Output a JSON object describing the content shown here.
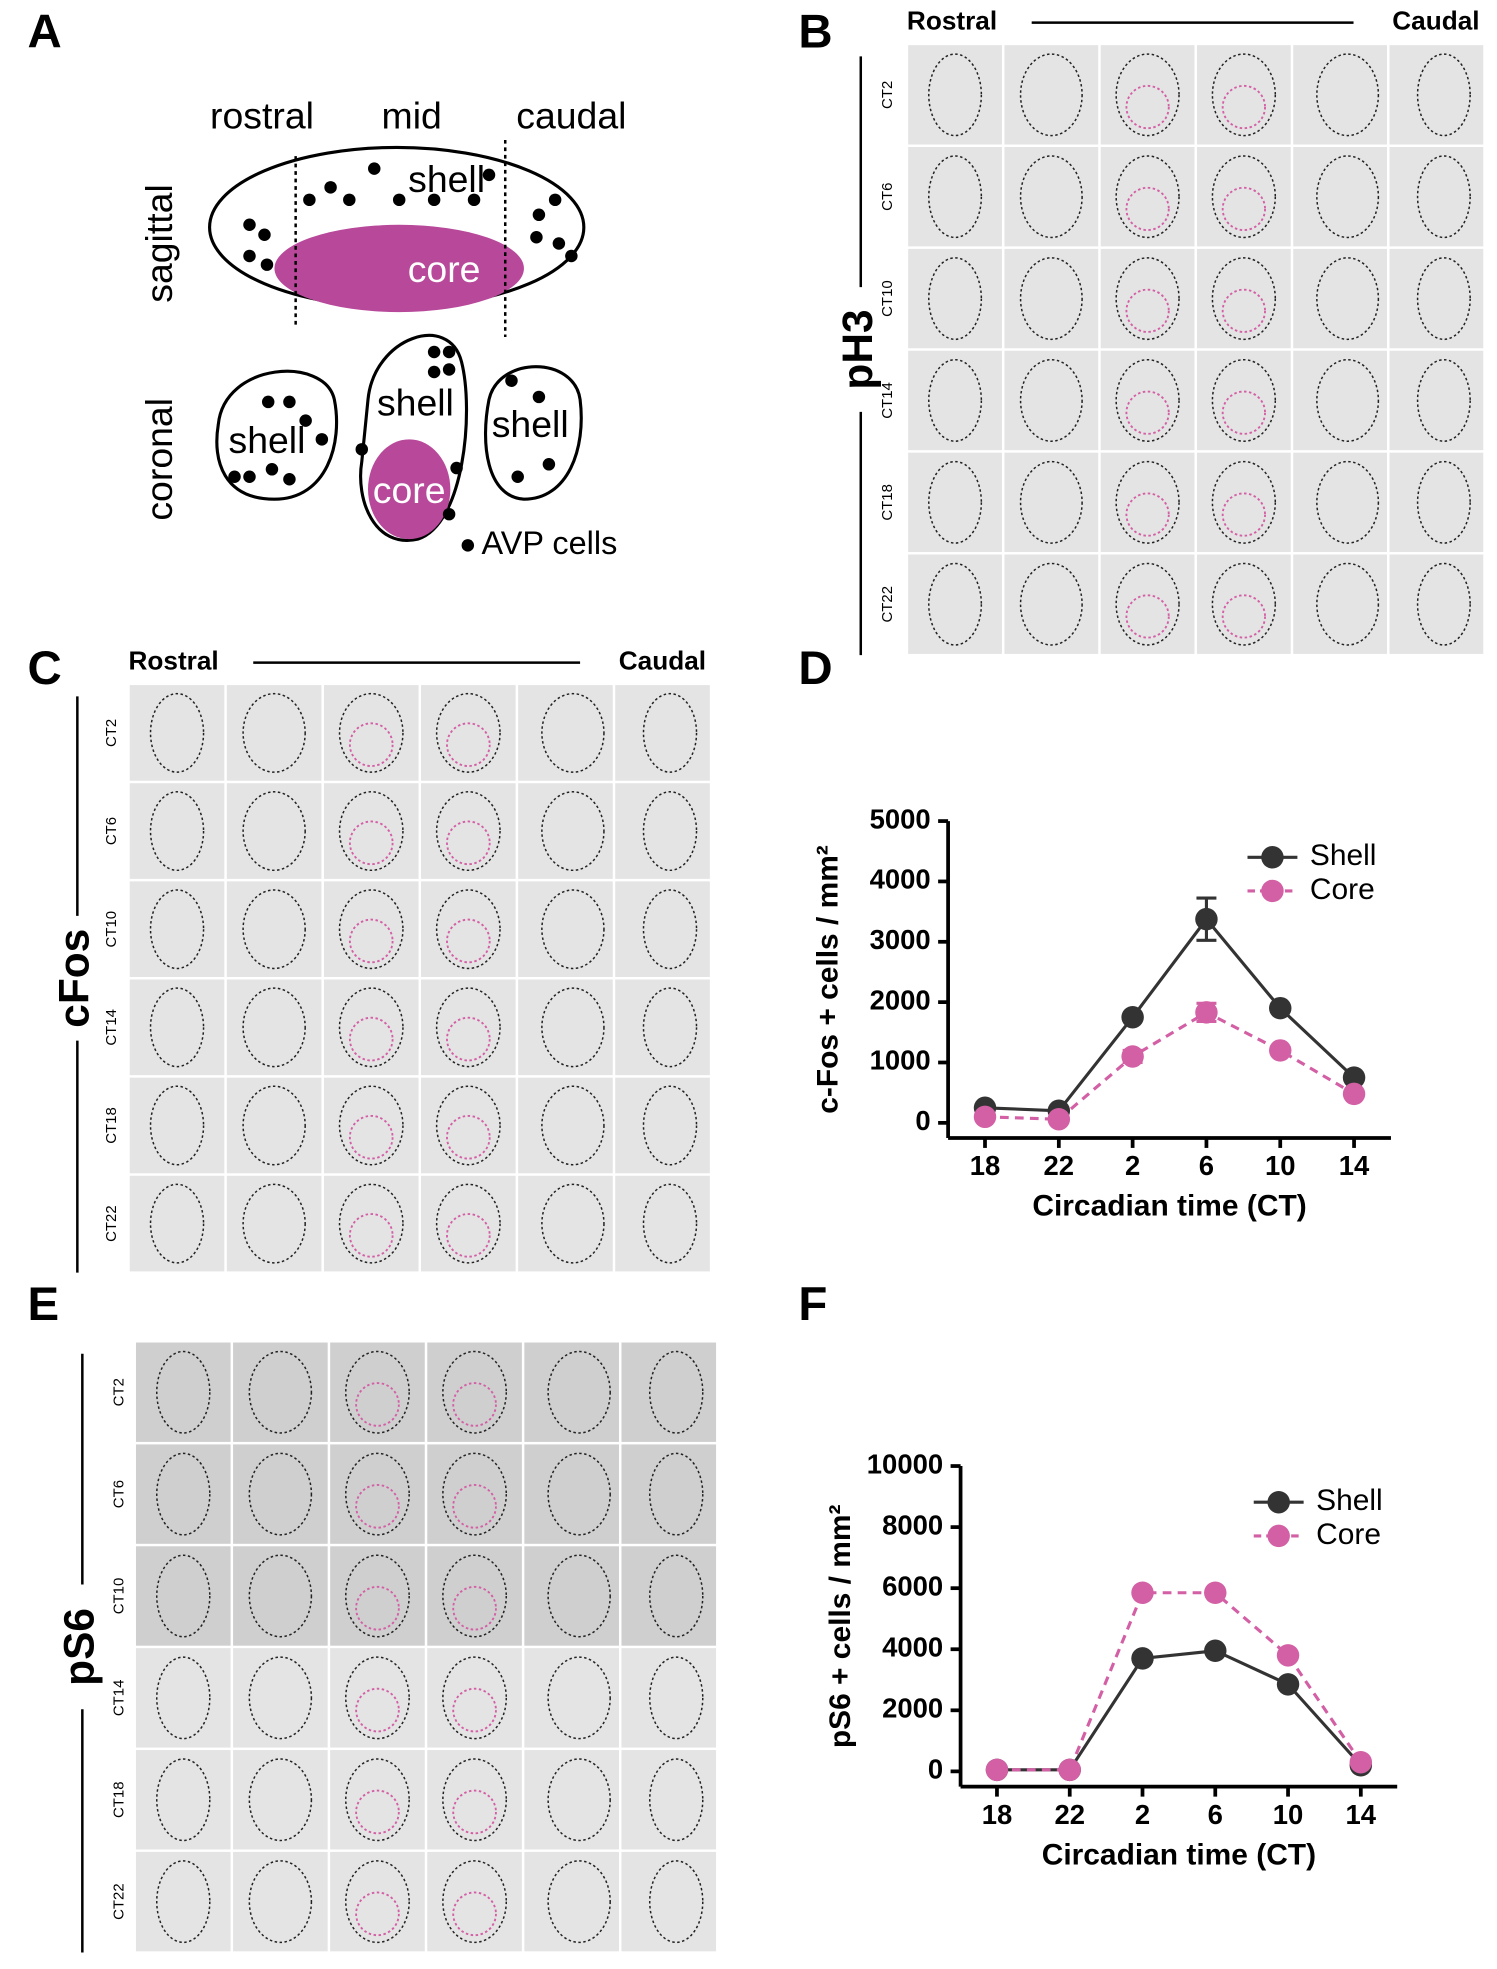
{
  "panel_labels": [
    "A",
    "B",
    "C",
    "D",
    "E",
    "F"
  ],
  "diagram": {
    "columns": [
      "rostral",
      "mid",
      "caudal"
    ],
    "views": [
      "sagittal",
      "coronal"
    ],
    "shell": "shell",
    "core": "core",
    "legend": "AVP cells"
  },
  "micrographs": [
    {
      "marker": "pH3",
      "start": "Rostral",
      "end": "Caudal",
      "rows": [
        "CT2",
        "CT6",
        "CT10",
        "CT14",
        "CT18",
        "CT22"
      ]
    },
    {
      "marker": "cFos",
      "start": "Rostral",
      "end": "Caudal",
      "rows": [
        "CT2",
        "CT6",
        "CT10",
        "CT14",
        "CT18",
        "CT22"
      ]
    },
    {
      "marker": "pS6",
      "rows": [
        "CT2",
        "CT6",
        "CT10",
        "CT14",
        "CT18",
        "CT22"
      ]
    }
  ],
  "chart_data": [
    {
      "type": "line",
      "y_label": "c-Fos + cells / mm²",
      "x_label": "Circadian time (CT)",
      "categories": [
        "18",
        "22",
        "2",
        "6",
        "10",
        "14"
      ],
      "series": [
        {
          "name": "Shell",
          "color": "#333333",
          "dashed": false,
          "values": [
            250,
            200,
            1750,
            3375,
            1900,
            750
          ],
          "errors": [
            null,
            null,
            null,
            350,
            null,
            null
          ]
        },
        {
          "name": "Core",
          "color": "#d35fa5",
          "dashed": true,
          "values": [
            100,
            60,
            1100,
            1830,
            1200,
            480
          ],
          "errors": [
            null,
            null,
            100,
            150,
            null,
            null
          ]
        }
      ],
      "ylim": [
        -250,
        5000
      ],
      "yticks": [
        0,
        1000,
        2000,
        3000,
        4000,
        5000
      ],
      "legend": "upper right"
    },
    {
      "type": "line",
      "y_label": "pS6 + cells / mm²",
      "x_label": "Circadian time (CT)",
      "categories": [
        "18",
        "22",
        "2",
        "6",
        "10",
        "14"
      ],
      "series": [
        {
          "name": "Shell",
          "color": "#333333",
          "dashed": false,
          "values": [
            50,
            50,
            3700,
            3950,
            2850,
            200
          ]
        },
        {
          "name": "Core",
          "color": "#d35fa5",
          "dashed": true,
          "values": [
            50,
            50,
            5850,
            5850,
            3800,
            300
          ]
        }
      ],
      "ylim": [
        -500,
        10000
      ],
      "yticks": [
        0,
        2000,
        4000,
        6000,
        8000,
        10000
      ],
      "legend": "upper right"
    }
  ]
}
